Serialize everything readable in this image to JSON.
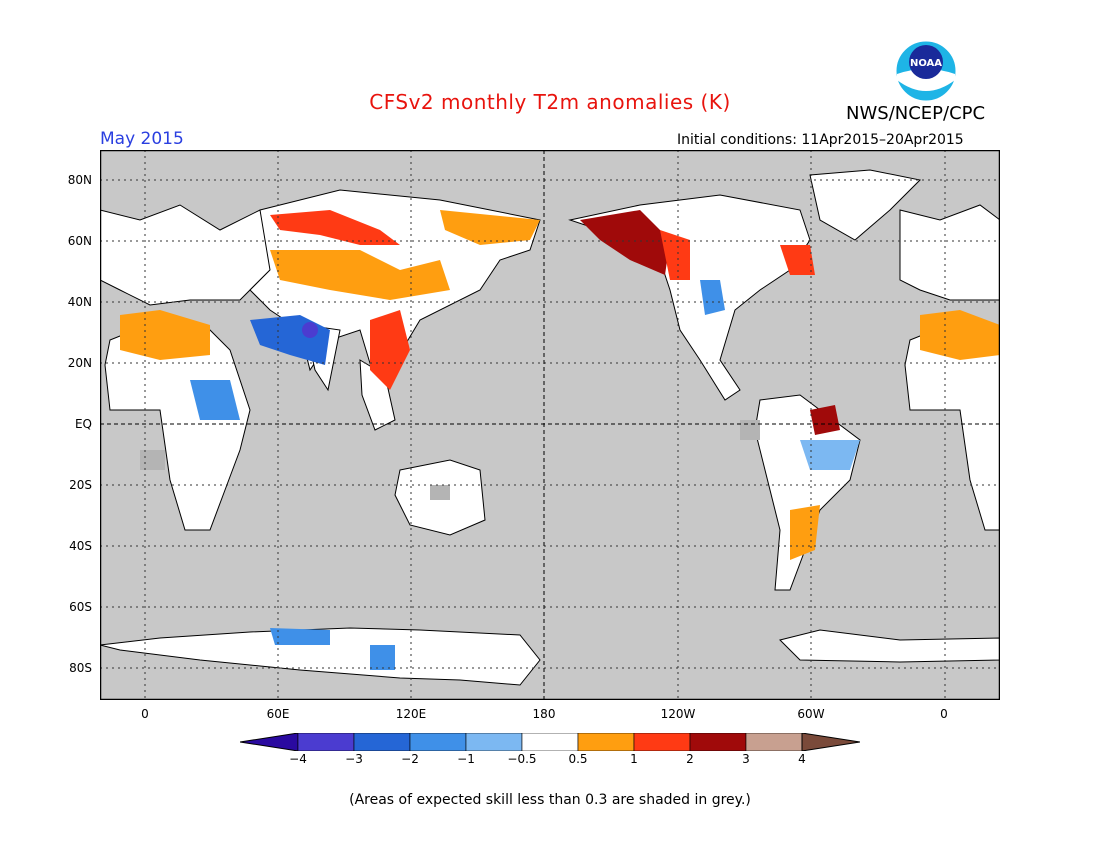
{
  "title": "CFSv2 monthly T2m anomalies (K)",
  "agency": "NWS/NCEP/CPC",
  "logo_text": "NOAA",
  "target_month": "May 2015",
  "initial_conditions": "Initial conditions: 11Apr2015–20Apr2015",
  "lat_labels": [
    "80N",
    "60N",
    "40N",
    "20N",
    "EQ",
    "20S",
    "40S",
    "60S",
    "80S"
  ],
  "lon_labels": [
    "0",
    "60E",
    "120E",
    "180",
    "120W",
    "60W",
    "0"
  ],
  "colorbar": {
    "labels": [
      "−4",
      "−3",
      "−2",
      "−1",
      "−0.5",
      "0.5",
      "1",
      "2",
      "3",
      "4"
    ],
    "colors": [
      "#2a0aa0",
      "#4b3cd0",
      "#2566d6",
      "#3f90e8",
      "#7cb8f2",
      "#ffffff",
      "#ff9e10",
      "#ff3a14",
      "#a00a0a",
      "#c8a090",
      "#7a4a3a"
    ],
    "unit": "K"
  },
  "footnote": "(Areas of expected skill less than 0.3 are shaded in grey.)",
  "colors": {
    "title": "#e8140e",
    "month": "#2a3fe0",
    "ocean": "#c8c8c8",
    "land": "#ffffff",
    "skill_grey": "#b4b4b4"
  }
}
